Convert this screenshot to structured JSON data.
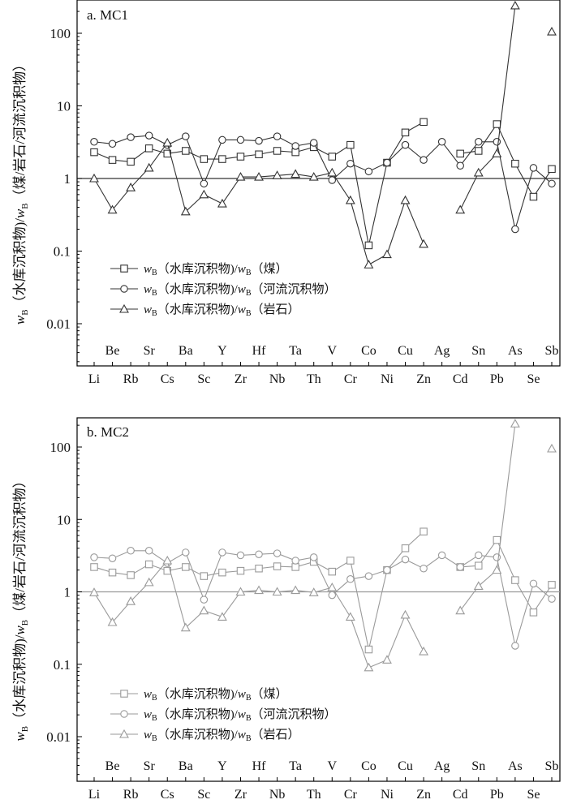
{
  "chart_data": [
    {
      "type": "line",
      "title": "a. MC1",
      "line_color": "#333333",
      "ylabel": "wB（水库沉积物)/wB（煤/岩石/河流沉积物）",
      "yscale": "log",
      "ylim": [
        0.002,
        300
      ],
      "yticks": [
        "0.01",
        "0.1",
        "1",
        "10",
        "100"
      ],
      "reference_line": 1,
      "categories": [
        "Li",
        "Be",
        "Rb",
        "Sr",
        "Cs",
        "Ba",
        "Sc",
        "Y",
        "Zr",
        "Hf",
        "Nb",
        "Ta",
        "Th",
        "V",
        "Cr",
        "Co",
        "Ni",
        "Cu",
        "Zn",
        "Ag",
        "Cd",
        "Sn",
        "Pb",
        "As",
        "Se",
        "Sb"
      ],
      "series": [
        {
          "name": "wB（水库沉积物)/wB（煤）",
          "marker": "square",
          "values": [
            2.3,
            1.8,
            1.7,
            2.6,
            2.2,
            2.4,
            1.85,
            1.85,
            2.0,
            2.15,
            2.4,
            2.3,
            2.7,
            2.0,
            2.9,
            0.12,
            1.65,
            4.3,
            6.0,
            null,
            2.2,
            2.4,
            5.6,
            1.6,
            0.56,
            1.35
          ]
        },
        {
          "name": "wB（水库沉积物)/wB（河流沉积物）",
          "marker": "circle",
          "values": [
            3.2,
            3.0,
            3.7,
            3.9,
            2.9,
            3.8,
            0.85,
            3.4,
            3.4,
            3.3,
            3.8,
            2.8,
            3.1,
            0.95,
            1.6,
            1.25,
            1.65,
            2.9,
            1.8,
            3.2,
            1.5,
            3.2,
            3.2,
            0.2,
            1.4,
            0.85
          ]
        },
        {
          "name": "wB（水库沉积物)/wB（岩石）",
          "marker": "triangle",
          "values": [
            1.0,
            0.37,
            0.75,
            1.4,
            3.1,
            0.35,
            0.6,
            0.45,
            1.05,
            1.05,
            1.1,
            1.15,
            1.05,
            1.2,
            0.5,
            0.065,
            0.09,
            0.5,
            0.125,
            null,
            0.37,
            1.2,
            2.2,
            240,
            null,
            105
          ]
        }
      ]
    },
    {
      "type": "line",
      "title": "b. MC2",
      "line_color": "#9a9a9a",
      "ylabel": "wB（水库沉积物)/wB（煤/岩石/河流沉积物）",
      "yscale": "log",
      "ylim": [
        0.002,
        300
      ],
      "yticks": [
        "0.01",
        "0.1",
        "1",
        "10",
        "100"
      ],
      "reference_line": 1,
      "categories": [
        "Li",
        "Be",
        "Rb",
        "Sr",
        "Cs",
        "Ba",
        "Sc",
        "Y",
        "Zr",
        "Hf",
        "Nb",
        "Ta",
        "Th",
        "V",
        "Cr",
        "Co",
        "Ni",
        "Cu",
        "Zn",
        "Ag",
        "Cd",
        "Sn",
        "Pb",
        "As",
        "Se",
        "Sb"
      ],
      "series": [
        {
          "name": "wB（水库沉积物)/wB（煤）",
          "marker": "square",
          "values": [
            2.2,
            1.85,
            1.7,
            2.4,
            1.95,
            2.2,
            1.65,
            1.85,
            1.95,
            2.1,
            2.25,
            2.2,
            2.6,
            1.9,
            2.7,
            0.16,
            2.0,
            4.0,
            6.8,
            null,
            2.2,
            2.3,
            5.2,
            1.45,
            0.52,
            1.25
          ]
        },
        {
          "name": "wB（水库沉积物)/wB（河流沉积物）",
          "marker": "circle",
          "values": [
            3.0,
            2.9,
            3.7,
            3.7,
            2.5,
            3.5,
            0.78,
            3.5,
            3.2,
            3.3,
            3.4,
            2.7,
            3.0,
            0.9,
            1.5,
            1.65,
            2.0,
            2.8,
            2.1,
            3.2,
            2.2,
            3.2,
            3.0,
            0.18,
            1.3,
            0.8
          ]
        },
        {
          "name": "wB（水库沉积物)/wB（岩石）",
          "marker": "triangle",
          "values": [
            0.98,
            0.38,
            0.74,
            1.35,
            2.7,
            0.32,
            0.55,
            0.45,
            1.0,
            1.05,
            1.0,
            1.05,
            0.98,
            1.15,
            0.45,
            0.09,
            0.115,
            0.48,
            0.15,
            null,
            0.55,
            1.2,
            2.0,
            210,
            null,
            95
          ]
        }
      ]
    }
  ],
  "legend": {
    "prefix_symbol": "w",
    "subscript": "B",
    "items": [
      "（水库沉积物)/",
      "（煤）",
      "（河流沉积物）",
      "（岩石）"
    ]
  },
  "ylabel_parts": {
    "w": "w",
    "sub": "B",
    "mid": "（水库沉积物)/",
    "end": "（煤/岩石/河流沉积物）"
  }
}
